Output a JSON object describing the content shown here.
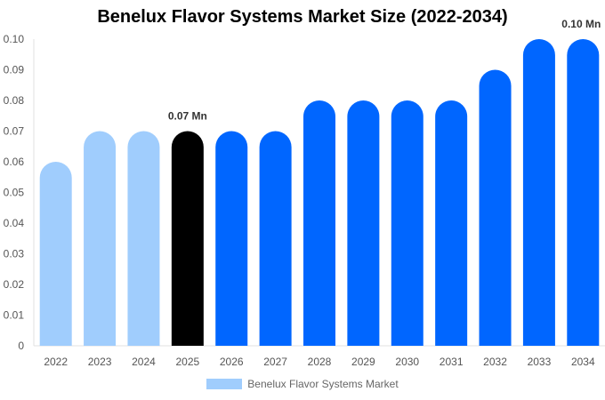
{
  "chart_data": {
    "type": "bar",
    "title": "Benelux Flavor Systems Market Size (2022-2034)",
    "categories": [
      "2022",
      "2023",
      "2024",
      "2025",
      "2026",
      "2027",
      "2028",
      "2029",
      "2030",
      "2031",
      "2032",
      "2033",
      "2034"
    ],
    "series": [
      {
        "name": "Benelux Flavor Systems Market",
        "values": [
          0.06,
          0.07,
          0.07,
          0.07,
          0.07,
          0.07,
          0.08,
          0.08,
          0.08,
          0.08,
          0.09,
          0.1,
          0.1
        ]
      }
    ],
    "bar_colors": [
      "#a0cdfd",
      "#a0cdfd",
      "#a0cdfd",
      "#000000",
      "#0066ff",
      "#0066ff",
      "#0066ff",
      "#0066ff",
      "#0066ff",
      "#0066ff",
      "#0066ff",
      "#0066ff",
      "#0066ff"
    ],
    "legend_color": "#a0cdfd",
    "ylim": [
      0,
      0.1
    ],
    "yticks": [
      "0",
      "0.01",
      "0.02",
      "0.03",
      "0.04",
      "0.05",
      "0.06",
      "0.07",
      "0.08",
      "0.09",
      "0.10"
    ],
    "annotations": [
      {
        "category": "2025",
        "text": "0.07 Mn"
      },
      {
        "category": "2034",
        "text": "0.10 Mn"
      }
    ],
    "grid": false,
    "legend_position": "bottom",
    "xlabel": "",
    "ylabel": ""
  }
}
